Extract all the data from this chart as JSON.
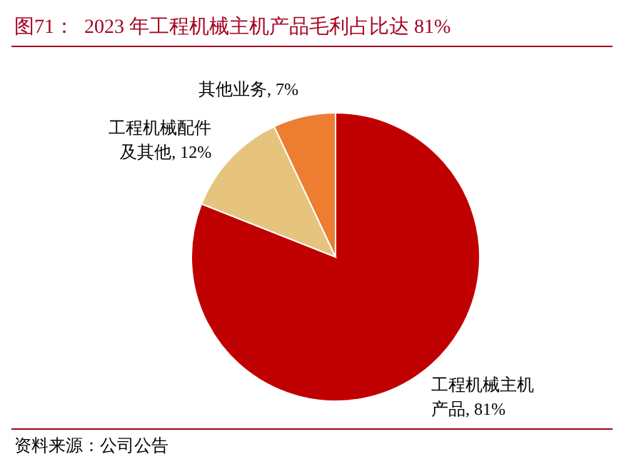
{
  "chart_data": {
    "type": "pie",
    "title": "图71：  2023 年工程机械主机产品毛利占比达 81%",
    "categories": [
      "工程机械主机产品",
      "工程机械配件及其他",
      "其他业务"
    ],
    "values": [
      81,
      12,
      7
    ],
    "colors": [
      "#c00000",
      "#e6c47e",
      "#ed7d31"
    ],
    "value_labels": [
      "81%",
      "12%",
      "7%"
    ],
    "annotations": [
      "资料来源：公司公告"
    ]
  }
}
